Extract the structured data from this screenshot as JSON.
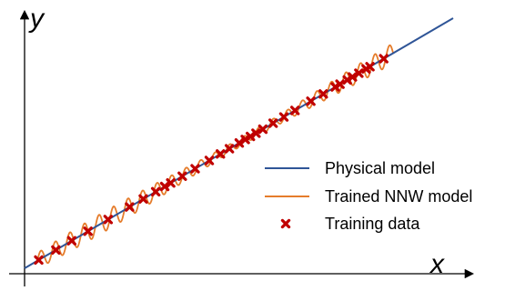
{
  "chart_data": {
    "type": "line",
    "xlabel": "x",
    "ylabel": "y",
    "ticks_visible": false,
    "grid": false,
    "legend": {
      "placement": "right",
      "entries": [
        {
          "label": "Physical model",
          "style": "line",
          "color": "#2f5597"
        },
        {
          "label": "Trained NNW model",
          "style": "line",
          "color": "#e57c2b"
        },
        {
          "label": "Training data",
          "style": "marker-x",
          "color": "#c00000"
        }
      ]
    },
    "series": [
      {
        "name": "Physical model",
        "kind": "line",
        "color": "#2f5597",
        "x": [
          0.0,
          1.0
        ],
        "y": [
          0.0,
          1.0
        ]
      },
      {
        "name": "Trained NNW model",
        "kind": "oscillating-line",
        "color": "#e57c2b",
        "note_shape": "follows physical model with small oscillations between data points"
      },
      {
        "name": "Training data",
        "kind": "scatter",
        "color": "#c00000",
        "x": [
          0.033,
          0.073,
          0.11,
          0.148,
          0.195,
          0.245,
          0.277,
          0.306,
          0.327,
          0.341,
          0.368,
          0.398,
          0.431,
          0.457,
          0.478,
          0.501,
          0.515,
          0.527,
          0.54,
          0.556,
          0.58,
          0.605,
          0.631,
          0.668,
          0.697,
          0.725,
          0.736,
          0.753,
          0.765,
          0.78,
          0.797,
          0.806,
          0.838
        ],
        "y": [
          0.033,
          0.073,
          0.11,
          0.148,
          0.195,
          0.245,
          0.277,
          0.306,
          0.327,
          0.341,
          0.368,
          0.398,
          0.431,
          0.457,
          0.478,
          0.501,
          0.515,
          0.527,
          0.54,
          0.556,
          0.58,
          0.605,
          0.631,
          0.668,
          0.697,
          0.725,
          0.736,
          0.753,
          0.765,
          0.78,
          0.797,
          0.806,
          0.838
        ]
      }
    ]
  }
}
